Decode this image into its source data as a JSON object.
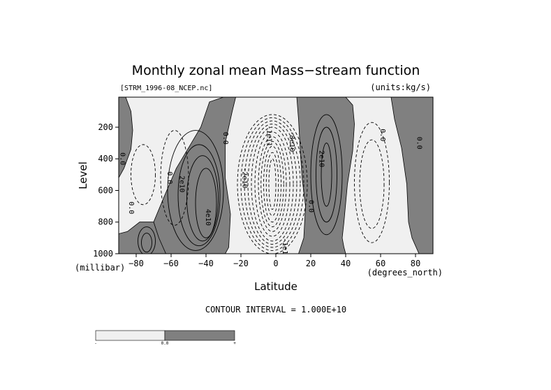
{
  "chart_data": {
    "type": "contour",
    "title": "Monthly zonal mean Mass−stream function",
    "subtitle_left": "[STRM_1996-08_NCEP.nc]",
    "subtitle_right": "(units:kg/s)",
    "xlabel": "Latitude",
    "ylabel": "Level",
    "x_unit": "(degrees_north)",
    "y_unit": "(millibar)",
    "xlim": [
      -90,
      90
    ],
    "ylim": [
      1000,
      10
    ],
    "x_ticks": [
      -80,
      -60,
      -40,
      -20,
      0,
      20,
      40,
      60,
      80
    ],
    "x_tick_labels": [
      "−80",
      "−60",
      "−40",
      "−20",
      "0",
      "20",
      "40",
      "60",
      "80"
    ],
    "y_ticks": [
      200,
      400,
      600,
      800,
      1000
    ],
    "y_tick_labels": [
      "200",
      "400",
      "600",
      "800",
      "1000"
    ],
    "contour_interval_text": "CONTOUR INTERVAL = 1.000E+10",
    "contour_interval": 10000000000,
    "shading": {
      "positive": "#808080",
      "negative": "#f0f0f0",
      "threshold": 0
    },
    "colorbar": {
      "labels": [
        "-",
        "0.0",
        "+"
      ],
      "colors": [
        "#f0f0f0",
        "#808080"
      ]
    },
    "contour_labels": [
      {
        "text": "0.0",
        "lat": -89,
        "lev": 400
      },
      {
        "text": "0.0",
        "lat": -84,
        "lev": 710
      },
      {
        "text": "0.0",
        "lat": -62,
        "lev": 520
      },
      {
        "text": "2e10",
        "lat": -55,
        "lev": 560
      },
      {
        "text": "4e10",
        "lat": -40,
        "lev": 770
      },
      {
        "text": "0.0",
        "lat": -30,
        "lev": 270
      },
      {
        "text": "-2e10",
        "lat": -19,
        "lev": 520
      },
      {
        "text": "-1e11",
        "lat": -5,
        "lev": 255
      },
      {
        "text": "-8e10",
        "lat": 8,
        "lev": 290
      },
      {
        "text": "2e10",
        "lat": 25,
        "lev": 400
      },
      {
        "text": "0.0",
        "lat": 19,
        "lev": 700
      },
      {
        "text": "0.0",
        "lat": 60,
        "lev": 250
      },
      {
        "text": "0.0",
        "lat": 81,
        "lev": 300
      },
      {
        "text": "-1e10",
        "lat": 4,
        "lev": 965
      }
    ]
  }
}
